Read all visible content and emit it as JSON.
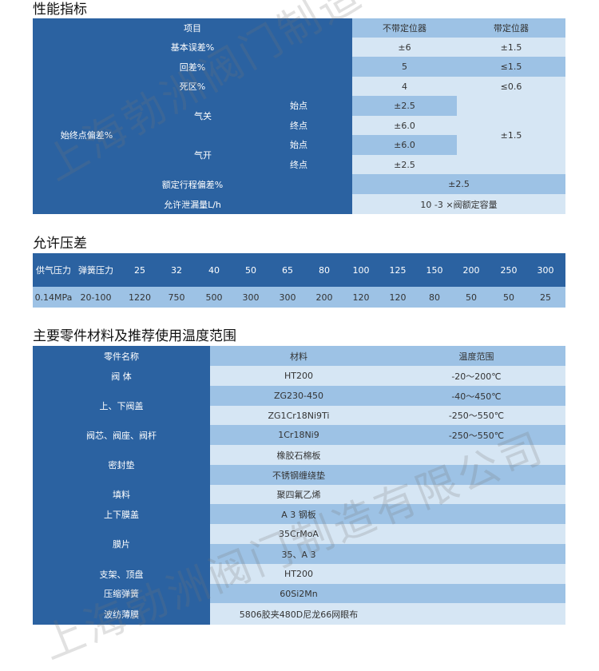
{
  "sections": {
    "performance_title": "性能指标",
    "pressure_title": "允许压差",
    "materials_title": "主要零件材料及推荐使用温度范围"
  },
  "performance": {
    "header": {
      "item": "项目",
      "no_positioner": "不带定位器",
      "with_positioner": "带定位器"
    },
    "basic_error": {
      "label": "基本误差%",
      "no_positioner": "±6",
      "with_positioner": "±1.5"
    },
    "hysteresis": {
      "label": "回差%",
      "no_positioner": "5",
      "with_positioner": "≤1.5"
    },
    "dead_band": {
      "label": "死区%",
      "no_positioner": "4",
      "with_positioner": "≤0.6"
    },
    "start_end_deviation": {
      "label": "始终点偏差%",
      "air_close": "气关",
      "air_open": "气开",
      "start": "始点",
      "end": "终点",
      "air_close_start": "±2.5",
      "air_close_end": "±6.0",
      "air_open_start": "±6.0",
      "air_open_end": "±2.5",
      "with_positioner": "±1.5"
    },
    "rated_travel_deviation": {
      "label": "额定行程偏差%",
      "value": "±2.5"
    },
    "allowed_leakage": {
      "label": "允许泄漏量L/h",
      "value": "10 -3 ×阀额定容量"
    }
  },
  "pressure": {
    "header": [
      "供气压力",
      "弹簧压力",
      "25",
      "32",
      "40",
      "50",
      "65",
      "80",
      "100",
      "125",
      "150",
      "200",
      "250",
      "300"
    ],
    "row": [
      "0.14MPa",
      "20-100",
      "1220",
      "750",
      "500",
      "300",
      "300",
      "200",
      "120",
      "120",
      "80",
      "50",
      "50",
      "25"
    ]
  },
  "materials": {
    "header": {
      "part": "零件名称",
      "material": "材料",
      "temp": "温度范围"
    },
    "parts": [
      "阀 体",
      "上、下阀盖",
      "阀芯、阀座、阀杆",
      "密封垫",
      "填料",
      "上下膜盖",
      "膜片",
      "支架、顶盘",
      "压缩弹簧",
      "波纺薄膜"
    ],
    "rows": [
      {
        "material": "HT200",
        "temp": "-20～200℃"
      },
      {
        "material": "ZG230-450",
        "temp": "-40～450℃"
      },
      {
        "material": "ZG1Cr18Ni9Ti",
        "temp": "-250～550℃"
      },
      {
        "material": "1Cr18Ni9",
        "temp": "-250～550℃"
      },
      {
        "material": "橡胶石棉板",
        "temp": ""
      },
      {
        "material": "不锈钢缠绕垫",
        "temp": ""
      },
      {
        "material": "聚四氟乙烯",
        "temp": ""
      },
      {
        "material": "A 3 钢板",
        "temp": ""
      },
      {
        "material": "35CrMoA",
        "temp": ""
      },
      {
        "material": "35、A 3",
        "temp": ""
      },
      {
        "material": "HT200",
        "temp": ""
      },
      {
        "material": "60Si2Mn",
        "temp": ""
      },
      {
        "material": "5806胶夹480D尼龙66网眼布",
        "temp": ""
      }
    ]
  },
  "watermark": "上海勃洲阀门制造有限公司",
  "colors": {
    "dark": "#2b62a1",
    "mid": "#9dc2e5",
    "light": "#d6e6f4"
  }
}
